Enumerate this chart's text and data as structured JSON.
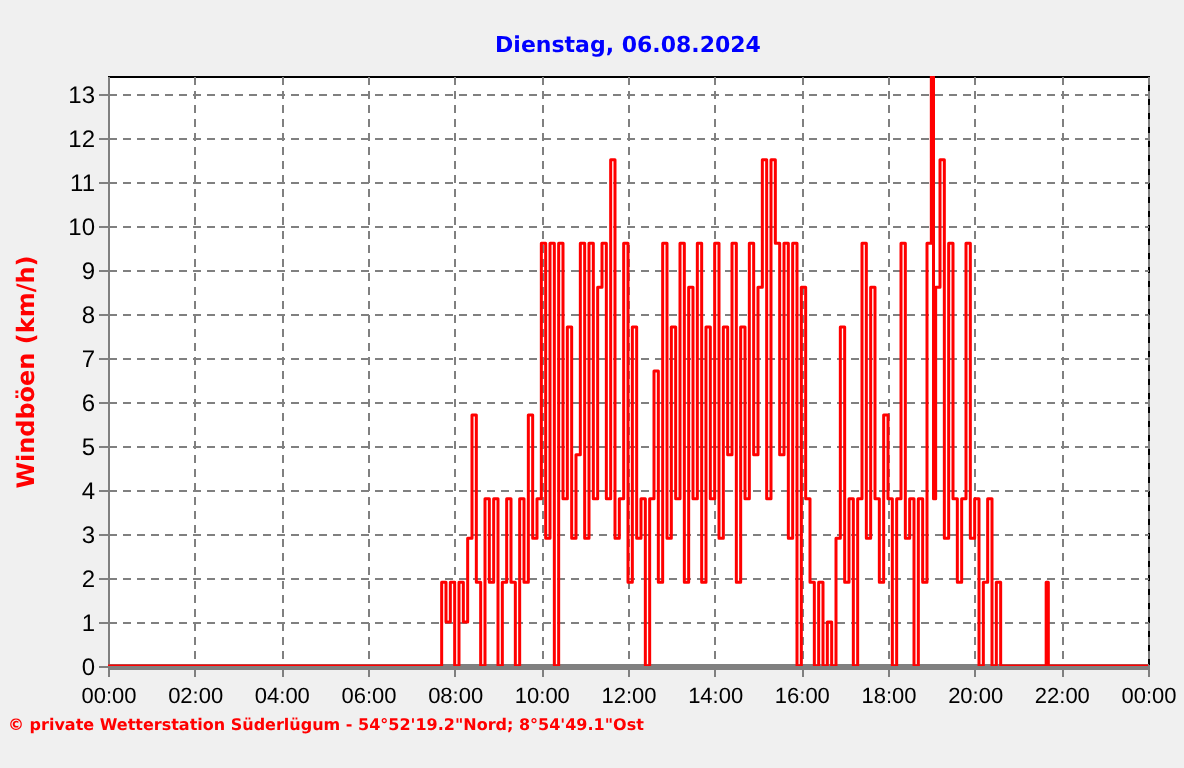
{
  "chart_data": {
    "type": "step",
    "title": "Dienstag, 06.08.2024",
    "ylabel": "Windböen  (km/h)",
    "annotations": [
      "© private Wetterstation Süderlügum - 54°52'19.2\"Nord; 8°54'49.1\"Ost"
    ],
    "x": [
      0,
      7.6,
      7.7,
      7.8,
      7.9,
      8.0,
      8.1,
      8.2,
      8.3,
      8.4,
      8.5,
      8.6,
      8.7,
      8.8,
      8.9,
      9.0,
      9.1,
      9.2,
      9.3,
      9.4,
      9.5,
      9.6,
      9.7,
      9.8,
      9.9,
      10.0,
      10.1,
      10.2,
      10.3,
      10.4,
      10.5,
      10.6,
      10.7,
      10.8,
      10.9,
      11.0,
      11.1,
      11.2,
      11.3,
      11.4,
      11.5,
      11.6,
      11.7,
      11.8,
      11.9,
      12.0,
      12.1,
      12.2,
      12.3,
      12.4,
      12.5,
      12.6,
      12.7,
      12.8,
      12.9,
      13.0,
      13.1,
      13.2,
      13.3,
      13.4,
      13.5,
      13.6,
      13.7,
      13.8,
      13.9,
      14.0,
      14.1,
      14.2,
      14.3,
      14.4,
      14.5,
      14.6,
      14.7,
      14.8,
      14.9,
      15.0,
      15.1,
      15.2,
      15.3,
      15.4,
      15.5,
      15.6,
      15.7,
      15.8,
      15.9,
      16.0,
      16.1,
      16.2,
      16.3,
      16.4,
      16.5,
      16.6,
      16.7,
      16.8,
      16.9,
      17.0,
      17.1,
      17.2,
      17.3,
      17.4,
      17.5,
      17.6,
      17.7,
      17.8,
      17.9,
      18.0,
      18.1,
      18.2,
      18.3,
      18.4,
      18.5,
      18.6,
      18.7,
      18.8,
      18.9,
      19.0,
      19.05,
      19.1,
      19.2,
      19.3,
      19.4,
      19.5,
      19.6,
      19.7,
      19.8,
      19.9,
      20.0,
      20.1,
      20.2,
      20.3,
      20.4,
      20.5,
      20.6,
      21.65,
      21.7,
      24
    ],
    "series": [
      {
        "color": "#ff0000",
        "values": [
          0,
          0,
          1.9,
          1.0,
          1.9,
          0,
          1.9,
          1.0,
          2.9,
          5.7,
          1.9,
          0,
          3.8,
          1.9,
          3.8,
          0,
          1.9,
          3.8,
          1.9,
          0,
          3.8,
          1.9,
          5.7,
          2.9,
          3.8,
          9.6,
          2.9,
          9.6,
          0,
          9.6,
          3.8,
          7.7,
          2.9,
          4.8,
          9.6,
          2.9,
          9.6,
          3.8,
          8.6,
          9.6,
          3.8,
          11.5,
          2.9,
          3.8,
          9.6,
          1.9,
          7.7,
          2.9,
          3.8,
          0,
          3.8,
          6.7,
          1.9,
          9.6,
          2.9,
          7.7,
          3.8,
          9.6,
          1.9,
          8.6,
          3.8,
          9.6,
          1.9,
          7.7,
          3.8,
          9.6,
          2.9,
          7.7,
          4.8,
          9.6,
          1.9,
          7.7,
          3.8,
          9.6,
          4.8,
          8.6,
          11.5,
          3.8,
          11.5,
          9.6,
          4.8,
          9.6,
          2.9,
          9.6,
          0,
          8.6,
          3.8,
          1.9,
          0,
          1.9,
          0,
          1.0,
          0,
          2.9,
          7.7,
          1.9,
          3.8,
          0,
          3.8,
          9.6,
          2.9,
          8.6,
          3.8,
          1.9,
          5.7,
          3.8,
          0,
          3.8,
          9.6,
          2.9,
          3.8,
          0,
          3.8,
          1.9,
          9.6,
          13.4,
          3.8,
          8.6,
          11.5,
          2.9,
          9.6,
          3.8,
          1.9,
          3.8,
          9.6,
          2.9,
          3.8,
          0,
          1.9,
          3.8,
          0,
          1.9,
          0,
          1.9,
          0,
          0
        ]
      }
    ],
    "xlim": [
      0,
      24
    ],
    "ylim": [
      0,
      13.4
    ],
    "xticks": [
      {
        "value": 0,
        "label": "00:00"
      },
      {
        "value": 2,
        "label": "02:00"
      },
      {
        "value": 4,
        "label": "04:00"
      },
      {
        "value": 6,
        "label": "06:00"
      },
      {
        "value": 8,
        "label": "08:00"
      },
      {
        "value": 10,
        "label": "10:00"
      },
      {
        "value": 12,
        "label": "12:00"
      },
      {
        "value": 14,
        "label": "14:00"
      },
      {
        "value": 16,
        "label": "16:00"
      },
      {
        "value": 18,
        "label": "18:00"
      },
      {
        "value": 20,
        "label": "20:00"
      },
      {
        "value": 22,
        "label": "22:00"
      },
      {
        "value": 24,
        "label": "00:00"
      }
    ],
    "yticks": [
      0,
      1,
      2,
      3,
      4,
      5,
      6,
      7,
      8,
      9,
      10,
      11,
      12,
      13
    ],
    "grid": true,
    "line_style": "solid",
    "marker": "none"
  }
}
